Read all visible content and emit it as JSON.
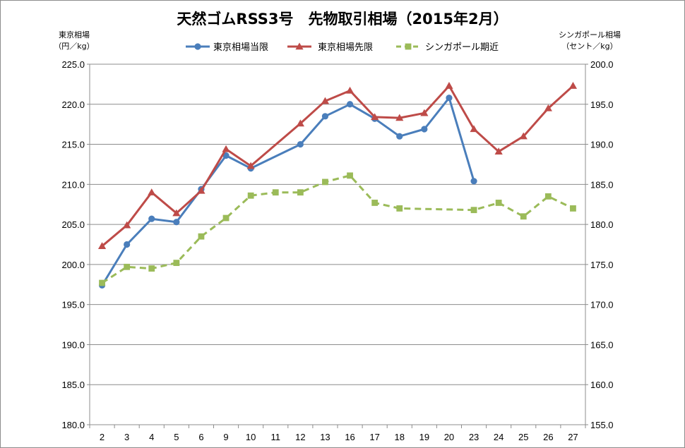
{
  "chart_data": {
    "type": "line",
    "title": "天然ゴムRSS3号　先物取引相場（2015年2月）",
    "ylabel_left": [
      "東京相場",
      "（円／kg）"
    ],
    "ylabel_right": [
      "シンガポール相場",
      "（セント／kg）"
    ],
    "categories": [
      "2",
      "3",
      "4",
      "5",
      "6",
      "9",
      "10",
      "11",
      "12",
      "13",
      "16",
      "17",
      "18",
      "19",
      "20",
      "23",
      "24",
      "25",
      "26",
      "27"
    ],
    "ylim_left": [
      180,
      225
    ],
    "ylim_right": [
      155,
      200
    ],
    "yticks_left": [
      "180.0",
      "185.0",
      "190.0",
      "195.0",
      "200.0",
      "205.0",
      "210.0",
      "215.0",
      "220.0",
      "225.0"
    ],
    "yticks_right": [
      "155.0",
      "160.0",
      "165.0",
      "170.0",
      "175.0",
      "180.0",
      "185.0",
      "190.0",
      "195.0",
      "200.0"
    ],
    "grid": true,
    "legend_position": "top",
    "series": [
      {
        "name": "東京相場当限",
        "axis": "left",
        "color": "#4a7ebb",
        "marker": "circle",
        "dash": "solid",
        "values": [
          197.4,
          202.5,
          205.7,
          205.3,
          209.4,
          213.6,
          212.0,
          null,
          215.0,
          218.5,
          220.0,
          218.2,
          216.0,
          216.9,
          220.8,
          210.4,
          null,
          null,
          null,
          null
        ]
      },
      {
        "name": "東京相場先限",
        "axis": "left",
        "color": "#be4b48",
        "marker": "triangle",
        "dash": "solid",
        "values": [
          202.3,
          204.9,
          209.0,
          206.4,
          209.2,
          214.4,
          212.3,
          null,
          217.6,
          220.4,
          221.7,
          218.4,
          218.3,
          218.9,
          222.3,
          216.9,
          214.1,
          216.0,
          219.5,
          222.3
        ]
      },
      {
        "name": "シンガポール期近",
        "axis": "right",
        "color": "#9bbb59",
        "marker": "square",
        "dash": "dashed",
        "values": [
          172.7,
          174.7,
          174.5,
          175.2,
          178.5,
          180.8,
          183.6,
          184.0,
          184.0,
          185.3,
          186.1,
          182.7,
          182.0,
          null,
          null,
          181.8,
          182.7,
          181.0,
          183.5,
          182.0
        ]
      }
    ]
  }
}
